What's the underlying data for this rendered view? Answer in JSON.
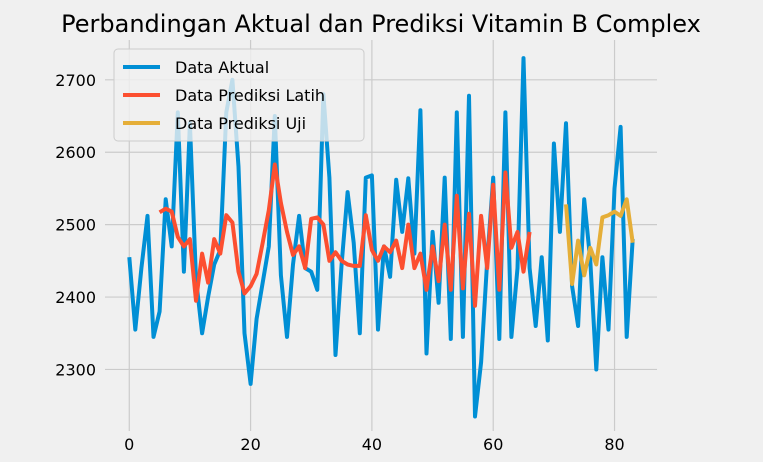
{
  "chart_data": {
    "type": "line",
    "title": "Perbandingan Aktual dan Prediksi Vitamin B Complex",
    "xlabel": "",
    "ylabel": "",
    "xlim": [
      -4,
      87
    ],
    "ylim": [
      2215,
      2755
    ],
    "xticks": [
      0,
      20,
      40,
      60,
      80
    ],
    "yticks": [
      2300,
      2400,
      2500,
      2600,
      2700
    ],
    "grid": true,
    "legend_position": "upper-left",
    "series": [
      {
        "name": "Data Aktual",
        "color": "#008fd5",
        "x": [
          0,
          1,
          2,
          3,
          4,
          5,
          6,
          7,
          8,
          9,
          10,
          11,
          12,
          13,
          14,
          15,
          16,
          17,
          18,
          19,
          20,
          21,
          22,
          23,
          24,
          25,
          26,
          27,
          28,
          29,
          30,
          31,
          32,
          33,
          34,
          35,
          36,
          37,
          38,
          39,
          40,
          41,
          42,
          43,
          44,
          45,
          46,
          47,
          48,
          49,
          50,
          51,
          52,
          53,
          54,
          55,
          56,
          57,
          58,
          59,
          60,
          61,
          62,
          63,
          64,
          65,
          66,
          67,
          68,
          69,
          70,
          71,
          72,
          73,
          74,
          75,
          76,
          77,
          78,
          79,
          80,
          81,
          82,
          83
        ],
        "y": [
          2455,
          2355,
          2440,
          2512,
          2345,
          2380,
          2535,
          2470,
          2655,
          2435,
          2640,
          2425,
          2350,
          2400,
          2445,
          2465,
          2655,
          2700,
          2580,
          2350,
          2280,
          2370,
          2420,
          2470,
          2650,
          2430,
          2345,
          2445,
          2512,
          2440,
          2435,
          2410,
          2680,
          2565,
          2320,
          2445,
          2545,
          2475,
          2350,
          2565,
          2568,
          2355,
          2470,
          2428,
          2562,
          2490,
          2564,
          2460,
          2658,
          2322,
          2490,
          2392,
          2565,
          2342,
          2655,
          2345,
          2678,
          2235,
          2310,
          2450,
          2565,
          2342,
          2655,
          2345,
          2440,
          2730,
          2440,
          2360,
          2455,
          2340,
          2612,
          2490,
          2640,
          2415,
          2360,
          2535,
          2450,
          2300,
          2455,
          2355,
          2550,
          2635,
          2345,
          2480
        ]
      },
      {
        "name": "Data Prediksi Latih",
        "color": "#fc4f30",
        "x": [
          5,
          6,
          7,
          8,
          9,
          10,
          11,
          12,
          13,
          14,
          15,
          16,
          17,
          18,
          19,
          20,
          21,
          22,
          23,
          24,
          25,
          26,
          27,
          28,
          29,
          30,
          31,
          32,
          33,
          34,
          35,
          36,
          37,
          38,
          39,
          40,
          41,
          42,
          43,
          44,
          45,
          46,
          47,
          48,
          49,
          50,
          51,
          52,
          53,
          54,
          55,
          56,
          57,
          58,
          59,
          60,
          61,
          62,
          63,
          64,
          65,
          66
        ],
        "y": [
          2517,
          2522,
          2518,
          2483,
          2470,
          2480,
          2395,
          2460,
          2420,
          2480,
          2460,
          2513,
          2503,
          2435,
          2405,
          2415,
          2432,
          2475,
          2520,
          2583,
          2530,
          2490,
          2458,
          2470,
          2440,
          2508,
          2510,
          2500,
          2450,
          2462,
          2450,
          2445,
          2443,
          2443,
          2513,
          2465,
          2450,
          2470,
          2462,
          2478,
          2440,
          2500,
          2440,
          2460,
          2410,
          2470,
          2422,
          2500,
          2410,
          2540,
          2412,
          2515,
          2388,
          2512,
          2440,
          2555,
          2410,
          2572,
          2468,
          2490,
          2435,
          2490
        ]
      },
      {
        "name": "Data Prediksi Uji",
        "color": "#e5ae38",
        "x": [
          72,
          73,
          74,
          75,
          76,
          77,
          78,
          79,
          80,
          81,
          82,
          83
        ],
        "y": [
          2528,
          2418,
          2478,
          2430,
          2468,
          2445,
          2510,
          2513,
          2518,
          2512,
          2535,
          2475
        ]
      }
    ]
  }
}
